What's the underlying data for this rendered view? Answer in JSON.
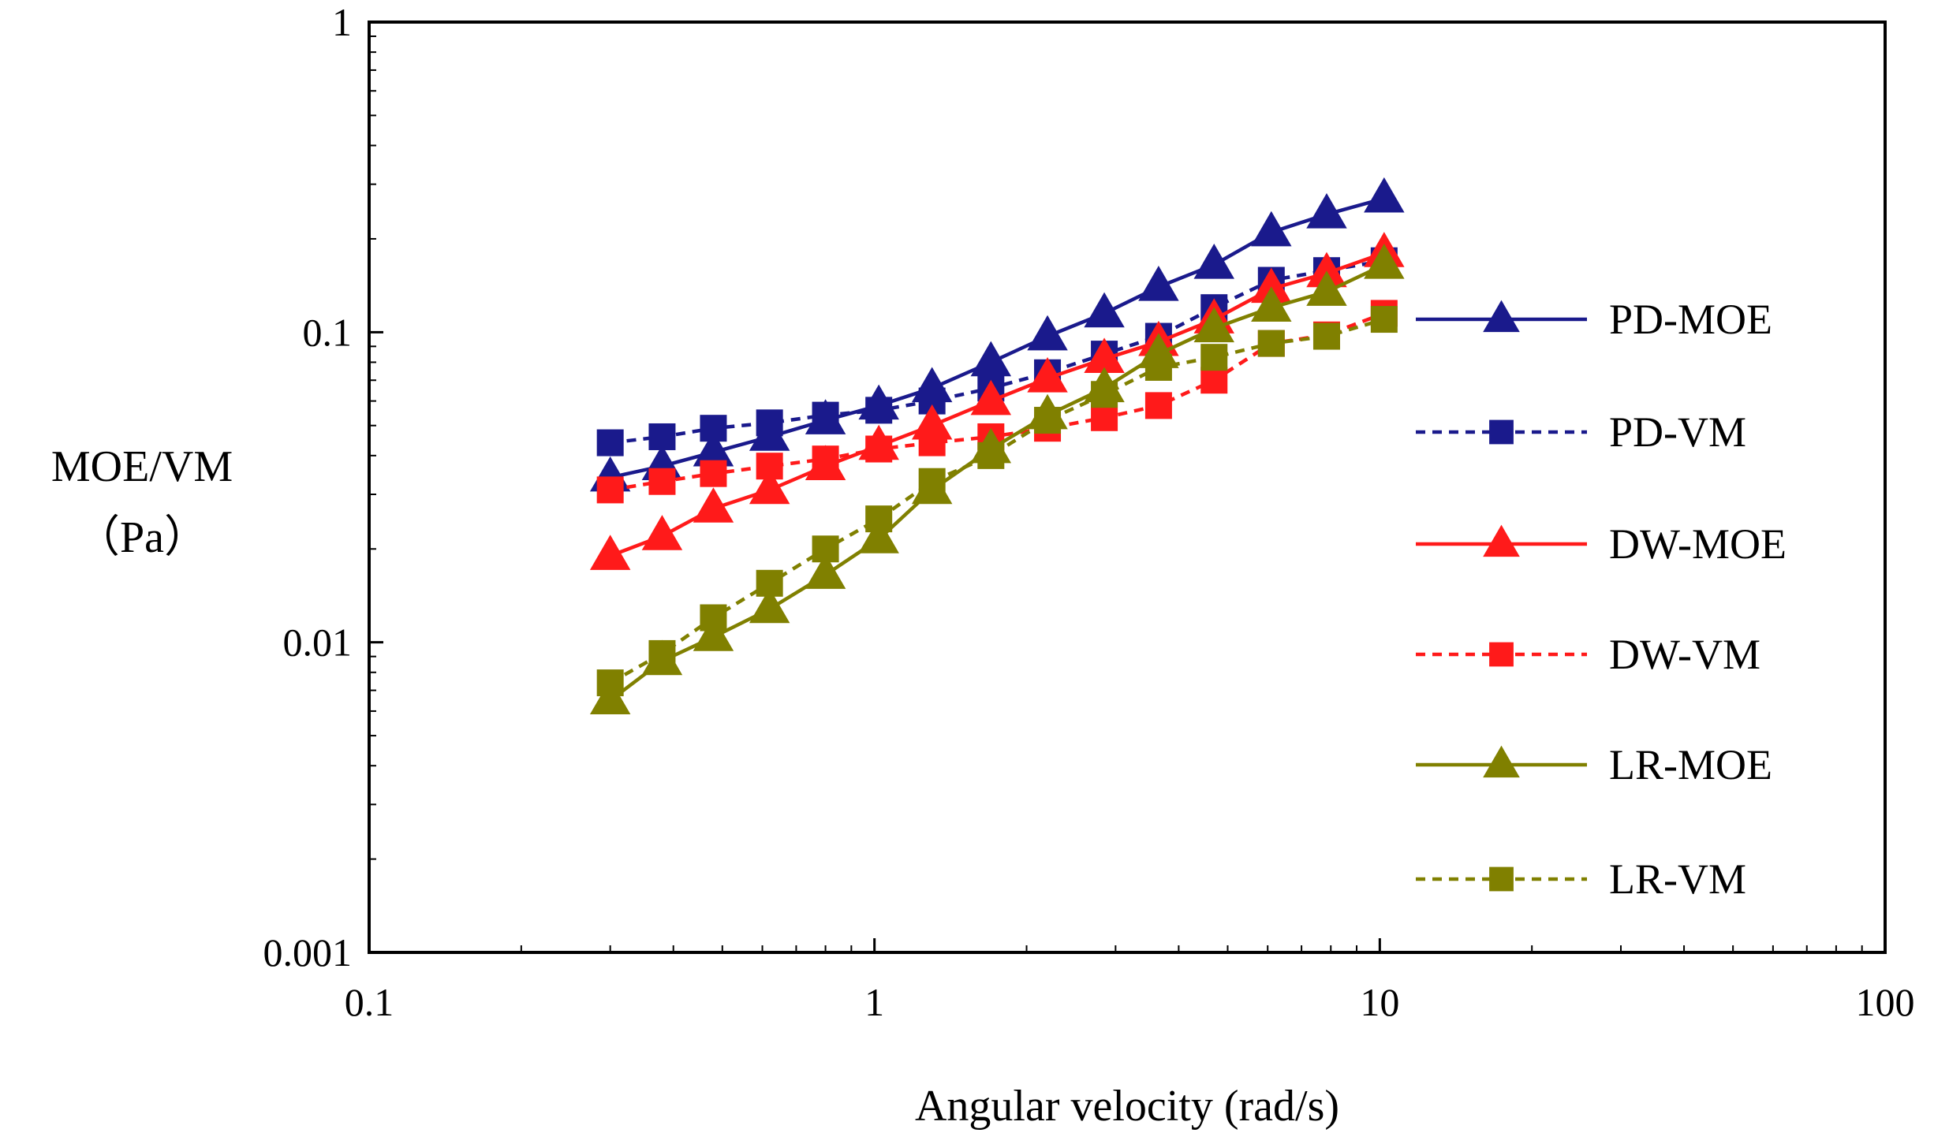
{
  "chart_data": {
    "type": "line",
    "title": "",
    "xlabel": "Angular velocity (rad/s)",
    "ylabel_lines": [
      "MOE/VM",
      "（Pa）"
    ],
    "xscale": "log",
    "yscale": "log",
    "xlim": [
      0.1,
      100
    ],
    "ylim": [
      0.001,
      1
    ],
    "x_ticks": [
      0.1,
      1,
      10,
      100
    ],
    "x_tick_labels": [
      "0.1",
      "1",
      "10",
      "100"
    ],
    "y_ticks": [
      0.001,
      0.01,
      0.1,
      1
    ],
    "y_tick_labels": [
      "0.001",
      "0.01",
      "0.1",
      "1"
    ],
    "grid": false,
    "legend_position": "right",
    "x": [
      0.3,
      0.38,
      0.48,
      0.62,
      0.8,
      1.02,
      1.3,
      1.7,
      2.2,
      2.85,
      3.65,
      4.7,
      6.1,
      7.85,
      10.2
    ],
    "series": [
      {
        "name": "PD-MOE",
        "color": "#1a1a8c",
        "line": "solid",
        "marker": "triangle",
        "values": [
          0.034,
          0.037,
          0.041,
          0.046,
          0.052,
          0.058,
          0.066,
          0.08,
          0.097,
          0.115,
          0.14,
          0.165,
          0.21,
          0.24,
          0.27
        ]
      },
      {
        "name": "PD-VM",
        "color": "#1a1a8c",
        "line": "dashed",
        "marker": "square",
        "values": [
          0.044,
          0.046,
          0.049,
          0.051,
          0.054,
          0.056,
          0.06,
          0.066,
          0.074,
          0.085,
          0.097,
          0.12,
          0.147,
          0.158,
          0.17
        ]
      },
      {
        "name": "DW-MOE",
        "color": "#ff1a1a",
        "line": "solid",
        "marker": "triangle",
        "values": [
          0.019,
          0.022,
          0.027,
          0.031,
          0.037,
          0.043,
          0.05,
          0.06,
          0.071,
          0.082,
          0.093,
          0.11,
          0.138,
          0.155,
          0.18
        ]
      },
      {
        "name": "DW-VM",
        "color": "#ff1a1a",
        "line": "dashed",
        "marker": "square",
        "values": [
          0.031,
          0.033,
          0.035,
          0.037,
          0.039,
          0.042,
          0.044,
          0.046,
          0.049,
          0.053,
          0.058,
          0.07,
          0.092,
          0.098,
          0.115
        ]
      },
      {
        "name": "LR-MOE",
        "color": "#808000",
        "line": "solid",
        "marker": "triangle",
        "values": [
          0.0065,
          0.0087,
          0.0104,
          0.0128,
          0.0165,
          0.0215,
          0.031,
          0.042,
          0.054,
          0.066,
          0.085,
          0.103,
          0.12,
          0.135,
          0.165
        ]
      },
      {
        "name": "LR-VM",
        "color": "#808000",
        "line": "dashed",
        "marker": "square",
        "values": [
          0.0074,
          0.0092,
          0.012,
          0.0155,
          0.02,
          0.025,
          0.033,
          0.04,
          0.052,
          0.063,
          0.077,
          0.083,
          0.092,
          0.097,
          0.11
        ]
      }
    ]
  }
}
